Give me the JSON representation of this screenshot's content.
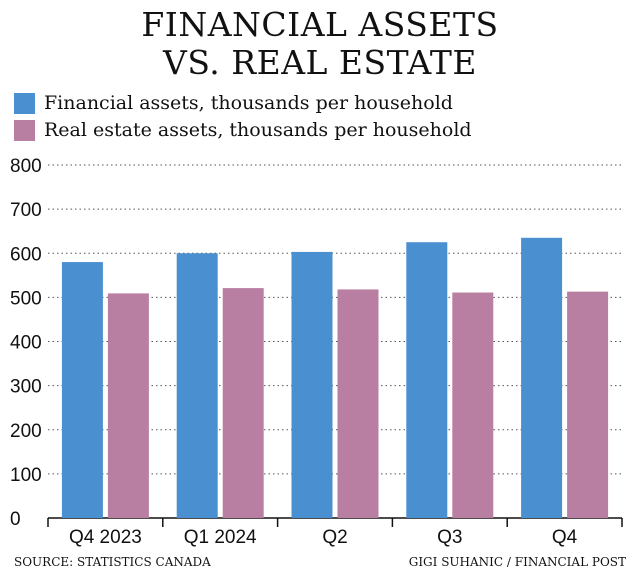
{
  "title_line1": "FINANCIAL ASSETS",
  "title_line2": "VS. REAL ESTATE",
  "source": "SOURCE: STATISTICS CANADA",
  "credit": "GIGI SUHANIC / FINANCIAL POST",
  "colors": {
    "financial": "#4a8fd0",
    "real_estate": "#b97fa3",
    "grid": "#555555",
    "axis": "#111111"
  },
  "chart_data": {
    "type": "bar",
    "title": "FINANCIAL ASSETS VS. REAL ESTATE",
    "categories": [
      "Q4 2023",
      "Q1 2024",
      "Q2",
      "Q3",
      "Q4"
    ],
    "series": [
      {
        "name": "Financial assets, thousands per household",
        "values": [
          580,
          600,
          603,
          625,
          635
        ]
      },
      {
        "name": "Real estate assets, thousands per household",
        "values": [
          509,
          521,
          518,
          511,
          513
        ]
      }
    ],
    "yticks": [
      "0",
      "100",
      "200",
      "300",
      "400",
      "500",
      "600",
      "700",
      "800"
    ],
    "ylim": [
      0,
      800
    ],
    "grid": true,
    "legend_position": "top-left"
  }
}
